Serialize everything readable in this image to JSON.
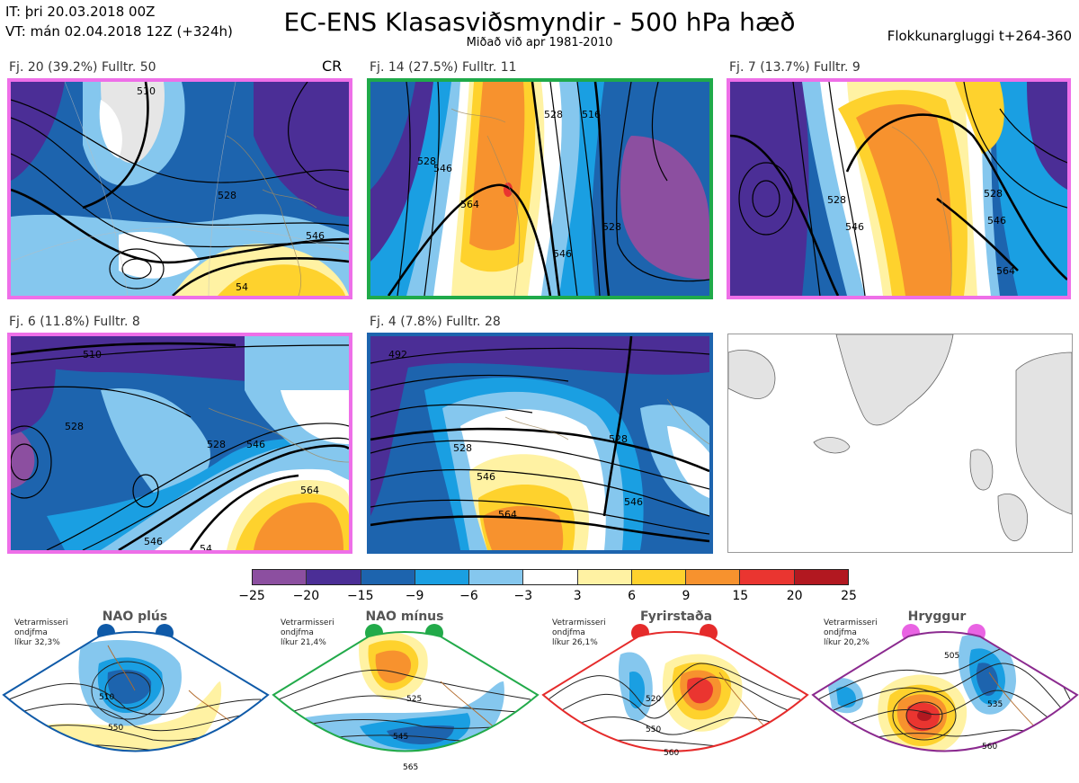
{
  "header": {
    "it_line": "IT: þri 20.03.2018 00Z",
    "vt_line": "VT: mán 02.04.2018 12Z  (+324h)",
    "title": "EC-ENS Klasasviðsmyndir - 500 hPa hæð",
    "subtitle": "Miðað við apr 1981-2010",
    "window": "Flokkunargluggi t+264-360"
  },
  "panels": [
    {
      "label": "Fj. 20 (39.2%)   Fulltr. 50",
      "tag": "CR",
      "border": "#ee6fe8",
      "contours": [
        "510",
        "528",
        "546",
        "54"
      ]
    },
    {
      "label": "Fj. 14 (27.5%)   Fulltr. 11",
      "tag": "",
      "border": "#1faa4a",
      "contours": [
        "528",
        "546",
        "564",
        "528",
        "516",
        "546",
        "528"
      ]
    },
    {
      "label": "Fj. 7 (13.7%)   Fulltr. 9",
      "tag": "",
      "border": "#ee6fe8",
      "contours": [
        "528",
        "546",
        "528",
        "564",
        "546"
      ]
    },
    {
      "label": "Fj. 6 (11.8%)   Fulltr. 8",
      "tag": "",
      "border": "#ee6fe8",
      "contours": [
        "510",
        "528",
        "528",
        "546",
        "564",
        "546",
        "54"
      ]
    },
    {
      "label": "Fj. 4 (7.8%)   Fulltr. 28",
      "tag": "",
      "border": "#1d64ae",
      "contours": [
        "492",
        "528",
        "528",
        "546",
        "564",
        "546"
      ]
    }
  ],
  "colorbar": {
    "colors": [
      "#8c4fa0",
      "#4b2e96",
      "#1d64ae",
      "#1a9fe2",
      "#85c7ee",
      "#ffffff",
      "#fff2a3",
      "#fed22d",
      "#f7922e",
      "#ea3530",
      "#b21820"
    ],
    "labels": [
      "−25",
      "−20",
      "−15",
      "−9",
      "−6",
      "−3",
      "3",
      "6",
      "9",
      "15",
      "20",
      "25"
    ]
  },
  "regimes": [
    {
      "title": "NAO plús",
      "meta": [
        "Vetrarmisseri",
        "ondjfma",
        "líkur 32,3%"
      ],
      "color": "#0f5aa8",
      "contours": [
        "510",
        "550"
      ]
    },
    {
      "title": "NAO mínus",
      "meta": [
        "Vetrarmisseri",
        "ondjfma",
        "líkur 21,4%"
      ],
      "color": "#22aa4a",
      "contours": [
        "525",
        "545",
        "565"
      ]
    },
    {
      "title": "Fyrirstaða",
      "meta": [
        "Vetrarmisseri",
        "ondjfma",
        "líkur 26,1%"
      ],
      "color": "#e52b2b",
      "contours": [
        "520",
        "550",
        "560"
      ]
    },
    {
      "title": "Hryggur",
      "meta": [
        "Vetrarmisseri",
        "ondjfma",
        "líkur 20,2%"
      ],
      "color": "#e963e3",
      "contours": [
        "505",
        "535",
        "560"
      ]
    }
  ]
}
